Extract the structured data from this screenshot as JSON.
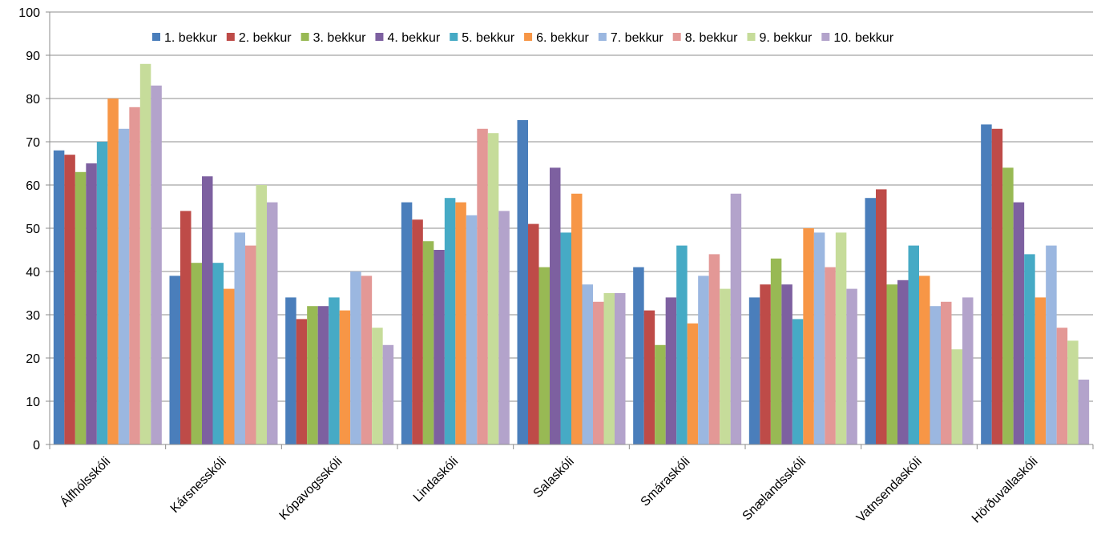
{
  "chart_data": {
    "type": "bar",
    "title": "",
    "xlabel": "",
    "ylabel": "",
    "ylim": [
      0,
      100
    ],
    "yticks": [
      0,
      10,
      20,
      30,
      40,
      50,
      60,
      70,
      80,
      90,
      100
    ],
    "grid": "horizontal",
    "legend_position": "top",
    "categories": [
      "Álfhólsskóli",
      "Kársnesskóli",
      "Kópavogsskóli",
      "Lindaskóli",
      "Salaskóli",
      "Smáraskóli",
      "Snælandsskóli",
      "Vatnsendaskóli",
      "Hörðuvallaskóli"
    ],
    "series": [
      {
        "name": "1. bekkur",
        "color": "#4a7ebb",
        "values": [
          68,
          39,
          34,
          56,
          75,
          41,
          34,
          57,
          74
        ]
      },
      {
        "name": "2. bekkur",
        "color": "#be4b48",
        "values": [
          67,
          54,
          29,
          52,
          51,
          31,
          37,
          59,
          73
        ]
      },
      {
        "name": "3. bekkur",
        "color": "#98b954",
        "values": [
          63,
          42,
          32,
          47,
          41,
          23,
          43,
          37,
          64
        ]
      },
      {
        "name": "4. bekkur",
        "color": "#7d60a0",
        "values": [
          65,
          62,
          32,
          45,
          64,
          34,
          37,
          38,
          56
        ]
      },
      {
        "name": "5. bekkur",
        "color": "#46aac5",
        "values": [
          70,
          42,
          34,
          57,
          49,
          46,
          29,
          46,
          44
        ]
      },
      {
        "name": "6. bekkur",
        "color": "#f79646",
        "values": [
          80,
          36,
          31,
          56,
          58,
          28,
          50,
          39,
          34
        ]
      },
      {
        "name": "7. bekkur",
        "color": "#9bb7e0",
        "values": [
          73,
          49,
          40,
          53,
          37,
          39,
          49,
          32,
          46
        ]
      },
      {
        "name": "8. bekkur",
        "color": "#e39896",
        "values": [
          78,
          46,
          39,
          73,
          33,
          44,
          41,
          33,
          27
        ]
      },
      {
        "name": "9. bekkur",
        "color": "#c6dc9a",
        "values": [
          88,
          60,
          27,
          72,
          35,
          36,
          49,
          22,
          24
        ]
      },
      {
        "name": "10. bekkur",
        "color": "#b3a3cb",
        "values": [
          83,
          56,
          23,
          54,
          35,
          58,
          36,
          34,
          15
        ]
      }
    ]
  }
}
